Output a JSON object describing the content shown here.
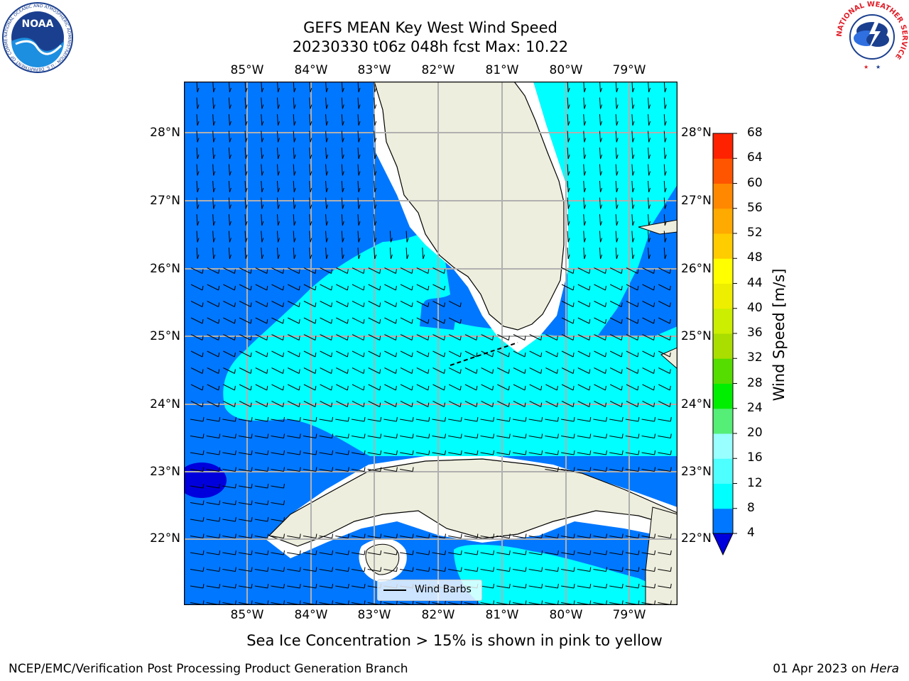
{
  "title": {
    "line1": "GEFS MEAN Key West Wind Speed",
    "line2": "20230330 t06z 048h fcst   Max: 10.22"
  },
  "logos": {
    "noaa_text": "NOAA",
    "noaa_ring": "NATIONAL OCEANIC AND ATMOSPHERIC ADMINISTRATION · U.S. DEPARTMENT OF COMMERCE",
    "nws_ring": "NATIONAL WEATHER SERVICE"
  },
  "map": {
    "lon_labels": [
      "85°W",
      "84°W",
      "83°W",
      "82°W",
      "81°W",
      "80°W",
      "79°W"
    ],
    "lat_labels": [
      "28°N",
      "27°N",
      "26°N",
      "25°N",
      "24°N",
      "23°N",
      "22°N"
    ],
    "lon_range": [
      -86.0,
      -78.3
    ],
    "lat_range": [
      21.0,
      28.8
    ],
    "grid": true,
    "colors": {
      "land": "#eeeede",
      "coast_gap": "#ffffff",
      "band_4_8": "#0077ff",
      "band_8_12": "#00ffff",
      "band_below_4": "#0000dd",
      "barb": "#000000"
    }
  },
  "colorbar": {
    "label": "Wind Speed [m/s]",
    "levels": [
      "4",
      "8",
      "12",
      "16",
      "20",
      "24",
      "28",
      "32",
      "36",
      "40",
      "44",
      "48",
      "52",
      "56",
      "60",
      "64",
      "68"
    ],
    "colors": [
      "#0077ff",
      "#00ffff",
      "#4dffff",
      "#99ffff",
      "#55ee77",
      "#00ee00",
      "#55dd00",
      "#aadd00",
      "#ccee00",
      "#eeee00",
      "#ffff00",
      "#ffcc00",
      "#ffaa00",
      "#ff8800",
      "#ff5500",
      "#ff2200"
    ],
    "under_color": "#0000dd"
  },
  "legend": {
    "label": "Wind Barbs"
  },
  "note": "Sea Ice Concentration > 15% is shown in pink to yellow",
  "footer": {
    "left": "NCEP/EMC/Verification Post Processing Product Generation Branch",
    "date": "01 Apr 2023 on ",
    "machine": "Hera"
  }
}
